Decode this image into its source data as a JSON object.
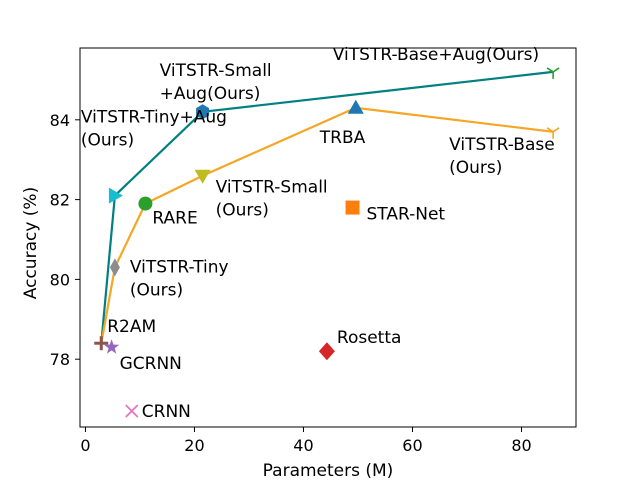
{
  "chart_data": {
    "type": "scatter",
    "title": "",
    "xlabel": "Parameters (M)",
    "ylabel": "Accuracy (%)",
    "xlim": [
      -1,
      90
    ],
    "ylim": [
      76.3,
      85.8
    ],
    "xticks": [
      0,
      20,
      40,
      60,
      80
    ],
    "yticks": [
      78,
      80,
      82,
      84
    ],
    "grid": false,
    "lines": [
      {
        "id": "ours-aug",
        "color": "#008080",
        "points": [
          [
            2.9,
            78.4
          ],
          [
            5.4,
            82.1
          ],
          [
            21.5,
            84.2
          ],
          [
            85.8,
            85.2
          ]
        ]
      },
      {
        "id": "ours",
        "color": "#f5a623",
        "points": [
          [
            2.9,
            78.4
          ],
          [
            5.4,
            80.3
          ],
          [
            11.0,
            81.9
          ],
          [
            21.5,
            82.6
          ],
          [
            49.6,
            84.3
          ],
          [
            85.8,
            83.7
          ]
        ]
      }
    ],
    "points": [
      {
        "label": "ViTSTR-Tiny+Aug\n(Ours)",
        "x": 5.4,
        "y": 82.1,
        "marker": "triangle-right",
        "color": "#17becf",
        "label_anchor": "start",
        "label_dx": -34,
        "label_dy": -73
      },
      {
        "label": "ViTSTR-Small\n+Aug(Ours)",
        "x": 21.5,
        "y": 84.2,
        "marker": "hexagon",
        "color": "#1f77b4",
        "label_anchor": "start",
        "label_dx": -43,
        "label_dy": -36
      },
      {
        "label": "ViTSTR-Base+Aug(Ours)",
        "x": 85.8,
        "y": 85.2,
        "marker": "tri-down",
        "color": "#2ca02c",
        "label_anchor": "end",
        "label_dx": -14,
        "label_dy": -12
      },
      {
        "label": "ViTSTR-Base\n(Ours)",
        "x": 85.8,
        "y": 83.7,
        "marker": "tri-down",
        "color": "#f5a623",
        "label_anchor": "start",
        "label_dx": -104,
        "label_dy": 18
      },
      {
        "label": "TRBA",
        "x": 49.6,
        "y": 84.3,
        "marker": "triangle-up",
        "color": "#1f77b4",
        "label_anchor": "start",
        "label_dx": -36,
        "label_dy": 35
      },
      {
        "label": "ViTSTR-Small\n(Ours)",
        "x": 21.5,
        "y": 82.6,
        "marker": "triangle-down",
        "color": "#bcbd22",
        "label_anchor": "start",
        "label_dx": 13,
        "label_dy": 17
      },
      {
        "label": "RARE",
        "x": 11.0,
        "y": 81.9,
        "marker": "circle",
        "color": "#2ca02c",
        "label_anchor": "start",
        "label_dx": 7,
        "label_dy": 20
      },
      {
        "label": "STAR-Net",
        "x": 49.0,
        "y": 81.8,
        "marker": "square",
        "color": "#ff7f0e",
        "label_anchor": "start",
        "label_dx": 14,
        "label_dy": 12
      },
      {
        "label": "ViTSTR-Tiny\n(Ours)",
        "x": 5.4,
        "y": 80.3,
        "marker": "diamond-thin",
        "color": "#8c8c8c",
        "label_anchor": "start",
        "label_dx": 15,
        "label_dy": 5
      },
      {
        "label": "R2AM",
        "x": 2.9,
        "y": 78.4,
        "marker": "plus",
        "color": "#8c564b",
        "label_anchor": "start",
        "label_dx": 6,
        "label_dy": -11
      },
      {
        "label": "GCRNN",
        "x": 4.8,
        "y": 78.3,
        "marker": "star",
        "color": "#9467bd",
        "label_anchor": "start",
        "label_dx": 8,
        "label_dy": 22
      },
      {
        "label": "Rosetta",
        "x": 44.3,
        "y": 78.2,
        "marker": "diamond",
        "color": "#d62728",
        "label_anchor": "start",
        "label_dx": 10,
        "label_dy": -8
      },
      {
        "label": "CRNN",
        "x": 8.5,
        "y": 76.7,
        "marker": "x",
        "color": "#e377c2",
        "label_anchor": "start",
        "label_dx": 10,
        "label_dy": 6
      }
    ]
  }
}
